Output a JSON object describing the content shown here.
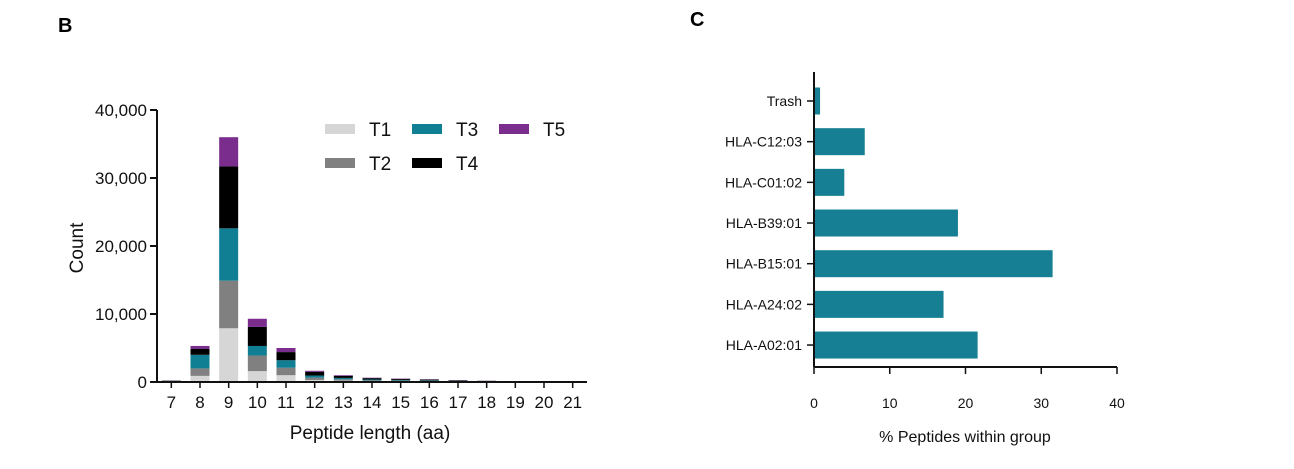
{
  "chart_data": [
    {
      "panel": "B",
      "type": "bar",
      "stacked": true,
      "xlabel": "Peptide length (aa)",
      "ylabel": "Count",
      "ylim": [
        0,
        40000
      ],
      "yticks": [
        "0",
        "10,000",
        "20,000",
        "30,000",
        "40,000"
      ],
      "ytick_values": [
        0,
        10000,
        20000,
        30000,
        40000
      ],
      "categories": [
        "7",
        "8",
        "9",
        "10",
        "11",
        "12",
        "13",
        "14",
        "15",
        "16",
        "17",
        "18",
        "19",
        "20",
        "21"
      ],
      "legend_position": "top-right",
      "series": [
        {
          "name": "T1",
          "color": "#d6d6d6",
          "values": [
            50,
            900,
            7900,
            1600,
            1000,
            300,
            200,
            120,
            100,
            80,
            60,
            40,
            20,
            10,
            5
          ]
        },
        {
          "name": "T2",
          "color": "#808080",
          "values": [
            50,
            1100,
            7000,
            2300,
            1100,
            350,
            200,
            130,
            110,
            80,
            60,
            40,
            20,
            10,
            5
          ]
        },
        {
          "name": "T3",
          "color": "#117f93",
          "values": [
            50,
            2000,
            7700,
            1400,
            1100,
            300,
            200,
            120,
            100,
            80,
            60,
            40,
            20,
            10,
            5
          ]
        },
        {
          "name": "T4",
          "color": "#000000",
          "values": [
            50,
            900,
            9100,
            2800,
            1200,
            550,
            300,
            200,
            150,
            120,
            80,
            50,
            30,
            10,
            5
          ]
        },
        {
          "name": "T5",
          "color": "#7b2d8e",
          "values": [
            20,
            400,
            4300,
            1200,
            600,
            150,
            100,
            60,
            50,
            40,
            30,
            20,
            10,
            5,
            2
          ]
        }
      ]
    },
    {
      "panel": "C",
      "type": "bar",
      "orientation": "horizontal",
      "xlabel": "% Peptides within group",
      "xlim": [
        0,
        40
      ],
      "xticks": [
        "0",
        "10",
        "20",
        "30",
        "40"
      ],
      "xtick_values": [
        0,
        10,
        20,
        30,
        40
      ],
      "color": "#177f93",
      "categories": [
        "Trash",
        "HLA-C12:03",
        "HLA-C01:02",
        "HLA-B39:01",
        "HLA-B15:01",
        "HLA-A24:02",
        "HLA-A02:01"
      ],
      "values": [
        0.8,
        6.7,
        4.0,
        19.0,
        31.5,
        17.1,
        21.6
      ]
    }
  ]
}
